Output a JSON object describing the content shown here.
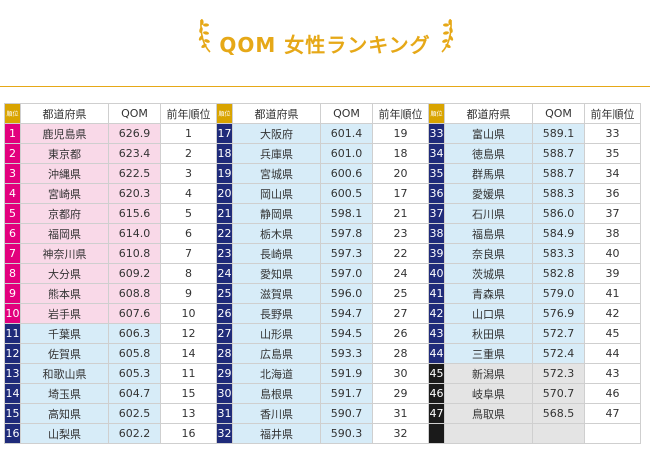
{
  "title": "QOM 女性ランキング",
  "colors": {
    "gold": "#e6a817",
    "rank_header": "#d9a400",
    "magenta": "#e2007d",
    "navy": "#1f2b7a",
    "black": "#1a1a1a",
    "pink_fill": "#f9d9e8",
    "blue_fill": "#d7ecf8",
    "gray_fill": "#e4e4e4"
  },
  "headers": {
    "rank": "順位",
    "prefecture": "都道府県",
    "qom": "QOM",
    "prev_rank": "前年順位"
  },
  "groups": [
    {
      "rows": [
        {
          "rank": "1",
          "pref": "鹿児島県",
          "qom": "626.9",
          "prev": "1",
          "badge": "magenta",
          "fill": "pink"
        },
        {
          "rank": "2",
          "pref": "東京都",
          "qom": "623.4",
          "prev": "2",
          "badge": "magenta",
          "fill": "pink"
        },
        {
          "rank": "3",
          "pref": "沖縄県",
          "qom": "622.5",
          "prev": "3",
          "badge": "magenta",
          "fill": "pink"
        },
        {
          "rank": "4",
          "pref": "宮崎県",
          "qom": "620.3",
          "prev": "4",
          "badge": "magenta",
          "fill": "pink"
        },
        {
          "rank": "5",
          "pref": "京都府",
          "qom": "615.6",
          "prev": "5",
          "badge": "magenta",
          "fill": "pink"
        },
        {
          "rank": "6",
          "pref": "福岡県",
          "qom": "614.0",
          "prev": "6",
          "badge": "magenta",
          "fill": "pink"
        },
        {
          "rank": "7",
          "pref": "神奈川県",
          "qom": "610.8",
          "prev": "7",
          "badge": "magenta",
          "fill": "pink"
        },
        {
          "rank": "8",
          "pref": "大分県",
          "qom": "609.2",
          "prev": "8",
          "badge": "magenta",
          "fill": "pink"
        },
        {
          "rank": "9",
          "pref": "熊本県",
          "qom": "608.8",
          "prev": "9",
          "badge": "magenta",
          "fill": "pink"
        },
        {
          "rank": "10",
          "pref": "岩手県",
          "qom": "607.6",
          "prev": "10",
          "badge": "magenta",
          "fill": "pink"
        },
        {
          "rank": "11",
          "pref": "千葉県",
          "qom": "606.3",
          "prev": "12",
          "badge": "navy",
          "fill": "blue"
        },
        {
          "rank": "12",
          "pref": "佐賀県",
          "qom": "605.8",
          "prev": "14",
          "badge": "navy",
          "fill": "blue"
        },
        {
          "rank": "13",
          "pref": "和歌山県",
          "qom": "605.3",
          "prev": "11",
          "badge": "navy",
          "fill": "blue"
        },
        {
          "rank": "14",
          "pref": "埼玉県",
          "qom": "604.7",
          "prev": "15",
          "badge": "navy",
          "fill": "blue"
        },
        {
          "rank": "15",
          "pref": "高知県",
          "qom": "602.5",
          "prev": "13",
          "badge": "navy",
          "fill": "blue"
        },
        {
          "rank": "16",
          "pref": "山梨県",
          "qom": "602.2",
          "prev": "16",
          "badge": "navy",
          "fill": "blue"
        }
      ]
    },
    {
      "rows": [
        {
          "rank": "17",
          "pref": "大阪府",
          "qom": "601.4",
          "prev": "19",
          "badge": "navy",
          "fill": "blue"
        },
        {
          "rank": "18",
          "pref": "兵庫県",
          "qom": "601.0",
          "prev": "18",
          "badge": "navy",
          "fill": "blue"
        },
        {
          "rank": "19",
          "pref": "宮城県",
          "qom": "600.6",
          "prev": "20",
          "badge": "navy",
          "fill": "blue"
        },
        {
          "rank": "20",
          "pref": "岡山県",
          "qom": "600.5",
          "prev": "17",
          "badge": "navy",
          "fill": "blue"
        },
        {
          "rank": "21",
          "pref": "静岡県",
          "qom": "598.1",
          "prev": "21",
          "badge": "navy",
          "fill": "blue"
        },
        {
          "rank": "22",
          "pref": "栃木県",
          "qom": "597.8",
          "prev": "23",
          "badge": "navy",
          "fill": "blue"
        },
        {
          "rank": "23",
          "pref": "長崎県",
          "qom": "597.3",
          "prev": "22",
          "badge": "navy",
          "fill": "blue"
        },
        {
          "rank": "24",
          "pref": "愛知県",
          "qom": "597.0",
          "prev": "24",
          "badge": "navy",
          "fill": "blue"
        },
        {
          "rank": "25",
          "pref": "滋賀県",
          "qom": "596.0",
          "prev": "25",
          "badge": "navy",
          "fill": "blue"
        },
        {
          "rank": "26",
          "pref": "長野県",
          "qom": "594.7",
          "prev": "27",
          "badge": "navy",
          "fill": "blue"
        },
        {
          "rank": "27",
          "pref": "山形県",
          "qom": "594.5",
          "prev": "26",
          "badge": "navy",
          "fill": "blue"
        },
        {
          "rank": "28",
          "pref": "広島県",
          "qom": "593.3",
          "prev": "28",
          "badge": "navy",
          "fill": "blue"
        },
        {
          "rank": "29",
          "pref": "北海道",
          "qom": "591.9",
          "prev": "30",
          "badge": "navy",
          "fill": "blue"
        },
        {
          "rank": "30",
          "pref": "島根県",
          "qom": "591.7",
          "prev": "29",
          "badge": "navy",
          "fill": "blue"
        },
        {
          "rank": "31",
          "pref": "香川県",
          "qom": "590.7",
          "prev": "31",
          "badge": "navy",
          "fill": "blue"
        },
        {
          "rank": "32",
          "pref": "福井県",
          "qom": "590.3",
          "prev": "32",
          "badge": "navy",
          "fill": "blue"
        }
      ]
    },
    {
      "rows": [
        {
          "rank": "33",
          "pref": "富山県",
          "qom": "589.1",
          "prev": "33",
          "badge": "navy",
          "fill": "blue"
        },
        {
          "rank": "34",
          "pref": "徳島県",
          "qom": "588.7",
          "prev": "35",
          "badge": "navy",
          "fill": "blue"
        },
        {
          "rank": "35",
          "pref": "群馬県",
          "qom": "588.7",
          "prev": "34",
          "badge": "navy",
          "fill": "blue"
        },
        {
          "rank": "36",
          "pref": "愛媛県",
          "qom": "588.3",
          "prev": "36",
          "badge": "navy",
          "fill": "blue"
        },
        {
          "rank": "37",
          "pref": "石川県",
          "qom": "586.0",
          "prev": "37",
          "badge": "navy",
          "fill": "blue"
        },
        {
          "rank": "38",
          "pref": "福島県",
          "qom": "584.9",
          "prev": "38",
          "badge": "navy",
          "fill": "blue"
        },
        {
          "rank": "39",
          "pref": "奈良県",
          "qom": "583.3",
          "prev": "40",
          "badge": "navy",
          "fill": "blue"
        },
        {
          "rank": "40",
          "pref": "茨城県",
          "qom": "582.8",
          "prev": "39",
          "badge": "navy",
          "fill": "blue"
        },
        {
          "rank": "41",
          "pref": "青森県",
          "qom": "579.0",
          "prev": "41",
          "badge": "navy",
          "fill": "blue"
        },
        {
          "rank": "42",
          "pref": "山口県",
          "qom": "576.9",
          "prev": "42",
          "badge": "navy",
          "fill": "blue"
        },
        {
          "rank": "43",
          "pref": "秋田県",
          "qom": "572.7",
          "prev": "45",
          "badge": "navy",
          "fill": "blue"
        },
        {
          "rank": "44",
          "pref": "三重県",
          "qom": "572.4",
          "prev": "44",
          "badge": "navy",
          "fill": "blue"
        },
        {
          "rank": "45",
          "pref": "新潟県",
          "qom": "572.3",
          "prev": "43",
          "badge": "black",
          "fill": "gray"
        },
        {
          "rank": "46",
          "pref": "岐阜県",
          "qom": "570.7",
          "prev": "46",
          "badge": "black",
          "fill": "gray"
        },
        {
          "rank": "47",
          "pref": "鳥取県",
          "qom": "568.5",
          "prev": "47",
          "badge": "black",
          "fill": "gray"
        },
        {
          "rank": "",
          "pref": "",
          "qom": "",
          "prev": "",
          "badge": "black",
          "fill": "gray"
        }
      ]
    }
  ]
}
